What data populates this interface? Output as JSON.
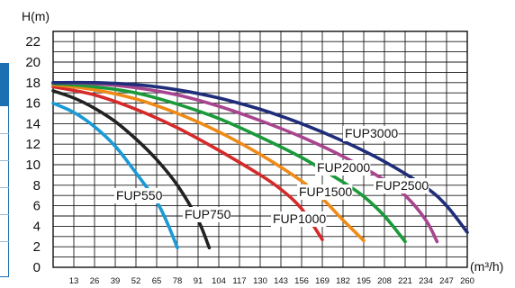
{
  "chart_data": {
    "type": "line",
    "ylabel": "H(m)",
    "xlabel": "(m³/h)",
    "ylim": [
      0,
      23
    ],
    "xlim": [
      0,
      260
    ],
    "y_ticks": [
      0,
      2,
      4,
      6,
      8,
      10,
      12,
      14,
      16,
      18,
      20,
      22
    ],
    "x_ticks": [
      13,
      26,
      39,
      52,
      65,
      78,
      91,
      104,
      117,
      130,
      143,
      156,
      169,
      182,
      195,
      208,
      221,
      234,
      247,
      260
    ],
    "grid": true,
    "series": [
      {
        "name": "FUP550",
        "color": "#1a9ad6",
        "points": [
          [
            0,
            16.0
          ],
          [
            13,
            15.1
          ],
          [
            26,
            13.7
          ],
          [
            39,
            11.8
          ],
          [
            52,
            9.2
          ],
          [
            65,
            6.4
          ],
          [
            72,
            4.2
          ],
          [
            78,
            1.9
          ]
        ]
      },
      {
        "name": "FUP750",
        "color": "#222222",
        "points": [
          [
            0,
            17.2
          ],
          [
            13,
            16.5
          ],
          [
            26,
            15.5
          ],
          [
            39,
            14.2
          ],
          [
            52,
            12.5
          ],
          [
            65,
            10.5
          ],
          [
            78,
            8.0
          ],
          [
            91,
            4.6
          ],
          [
            98,
            1.9
          ]
        ]
      },
      {
        "name": "FUP1000",
        "color": "#d42a2a",
        "points": [
          [
            0,
            17.6
          ],
          [
            26,
            16.8
          ],
          [
            52,
            15.4
          ],
          [
            78,
            13.6
          ],
          [
            104,
            11.4
          ],
          [
            130,
            9.0
          ],
          [
            143,
            7.6
          ],
          [
            156,
            5.7
          ],
          [
            169,
            2.7
          ]
        ]
      },
      {
        "name": "FUP1500",
        "color": "#f08a16",
        "points": [
          [
            0,
            17.8
          ],
          [
            26,
            17.3
          ],
          [
            52,
            16.4
          ],
          [
            78,
            15.0
          ],
          [
            104,
            13.2
          ],
          [
            130,
            11.0
          ],
          [
            156,
            8.4
          ],
          [
            169,
            6.7
          ],
          [
            182,
            4.6
          ],
          [
            195,
            2.6
          ]
        ]
      },
      {
        "name": "FUP2000",
        "color": "#1a9a3a",
        "points": [
          [
            0,
            17.9
          ],
          [
            26,
            17.6
          ],
          [
            52,
            17.0
          ],
          [
            78,
            15.9
          ],
          [
            104,
            14.5
          ],
          [
            130,
            12.7
          ],
          [
            156,
            10.7
          ],
          [
            182,
            8.3
          ],
          [
            195,
            6.9
          ],
          [
            208,
            5.0
          ],
          [
            221,
            2.5
          ]
        ]
      },
      {
        "name": "FUP2500",
        "color": "#a8458f",
        "points": [
          [
            0,
            18.0
          ],
          [
            26,
            17.9
          ],
          [
            52,
            17.5
          ],
          [
            78,
            16.8
          ],
          [
            104,
            15.7
          ],
          [
            130,
            14.3
          ],
          [
            156,
            12.7
          ],
          [
            182,
            10.8
          ],
          [
            208,
            8.5
          ],
          [
            221,
            7.0
          ],
          [
            234,
            4.6
          ],
          [
            241,
            2.5
          ]
        ]
      },
      {
        "name": "FUP3000",
        "color": "#1f2d7a",
        "points": [
          [
            0,
            18.0
          ],
          [
            26,
            18.0
          ],
          [
            52,
            17.8
          ],
          [
            78,
            17.3
          ],
          [
            104,
            16.5
          ],
          [
            130,
            15.4
          ],
          [
            156,
            14.0
          ],
          [
            182,
            12.3
          ],
          [
            208,
            10.3
          ],
          [
            234,
            7.8
          ],
          [
            247,
            6.0
          ],
          [
            260,
            3.4
          ]
        ]
      }
    ]
  }
}
